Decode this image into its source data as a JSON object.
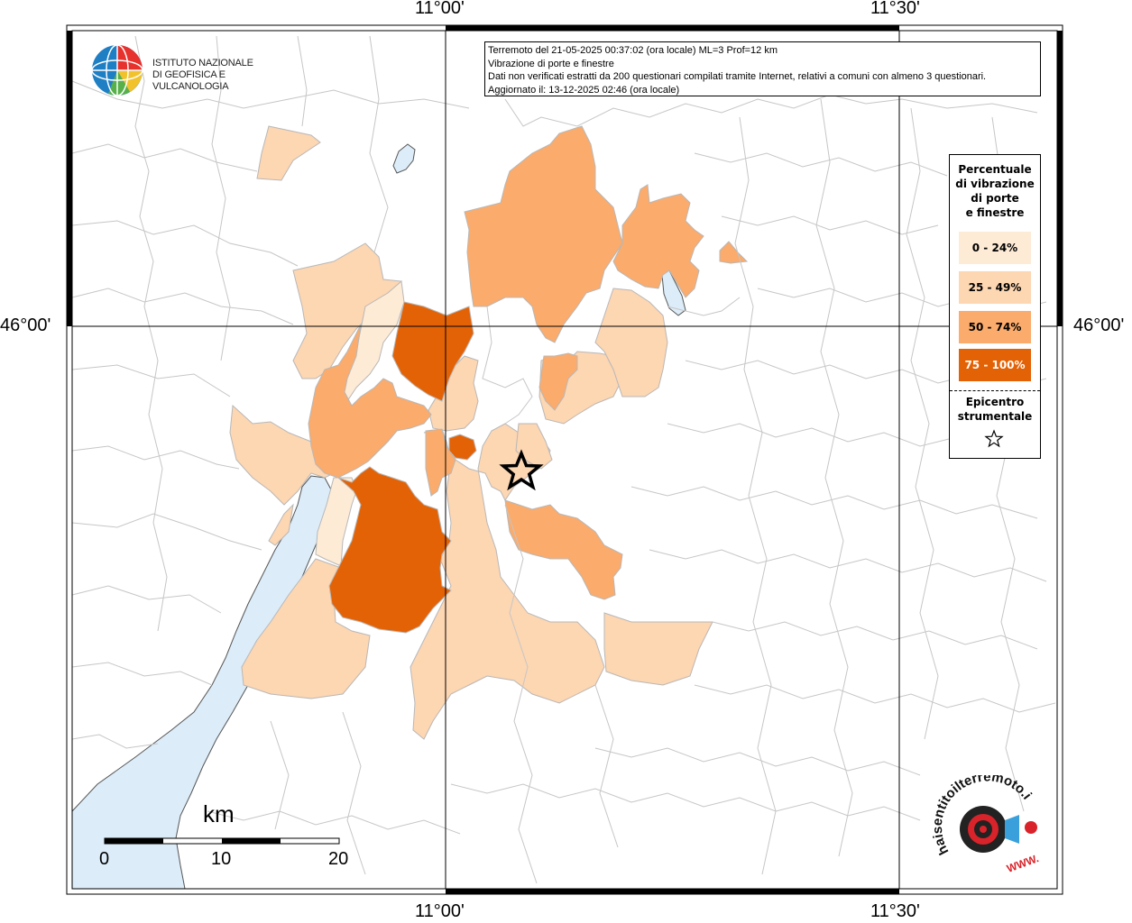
{
  "map": {
    "axis_labels": {
      "top_left": "11°00'",
      "top_right": "11°30'",
      "bottom_left": "11°00'",
      "bottom_right": "11°30'",
      "left": "46°00'",
      "right": "46°00'"
    },
    "colors": {
      "water": "#dcecf8",
      "class_0_24": "#fdebd6",
      "class_25_49": "#fdd6b2",
      "class_50_74": "#fbab6b",
      "class_75_100": "#e36206",
      "boundary": "#b8b8b8"
    }
  },
  "institute": {
    "line1": "ISTITUTO NAZIONALE",
    "line2": "DI GEOFISICA E VULCANOLOGIA"
  },
  "info": {
    "line1": "Terremoto del 21-05-2025 00:37:02 (ora locale) ML=3 Prof=12 km",
    "line2": "Vibrazione di porte e finestre",
    "line3": "Dati non verificati estratti da 200 questionari compilati tramite Internet, relativi a comuni con almeno 3 questionari.",
    "line4": "Aggiornato il: 13-12-2025 02:46 (ora locale)"
  },
  "legend": {
    "title_line1": "Percentuale",
    "title_line2": "di vibrazione",
    "title_line3": "di porte",
    "title_line4": "e finestre",
    "items": [
      {
        "label": "0 - 24%",
        "color": "#fdebd6",
        "text_color": "#000000"
      },
      {
        "label": "25 - 49%",
        "color": "#fdd6b2",
        "text_color": "#000000"
      },
      {
        "label": "50 - 74%",
        "color": "#fbab6b",
        "text_color": "#000000"
      },
      {
        "label": "75 - 100%",
        "color": "#e36206",
        "text_color": "#ffffff"
      }
    ],
    "epicenter_line1": "Epicentro",
    "epicenter_line2": "strumentale",
    "epicenter_icon": "star-outline-icon"
  },
  "scale": {
    "unit": "km",
    "ticks": [
      "0",
      "10",
      "20"
    ]
  },
  "badge": {
    "text_arc": "haisentitoilterremoto.it",
    "url": "WWW.",
    "icon": "seismograph-target-icon"
  }
}
